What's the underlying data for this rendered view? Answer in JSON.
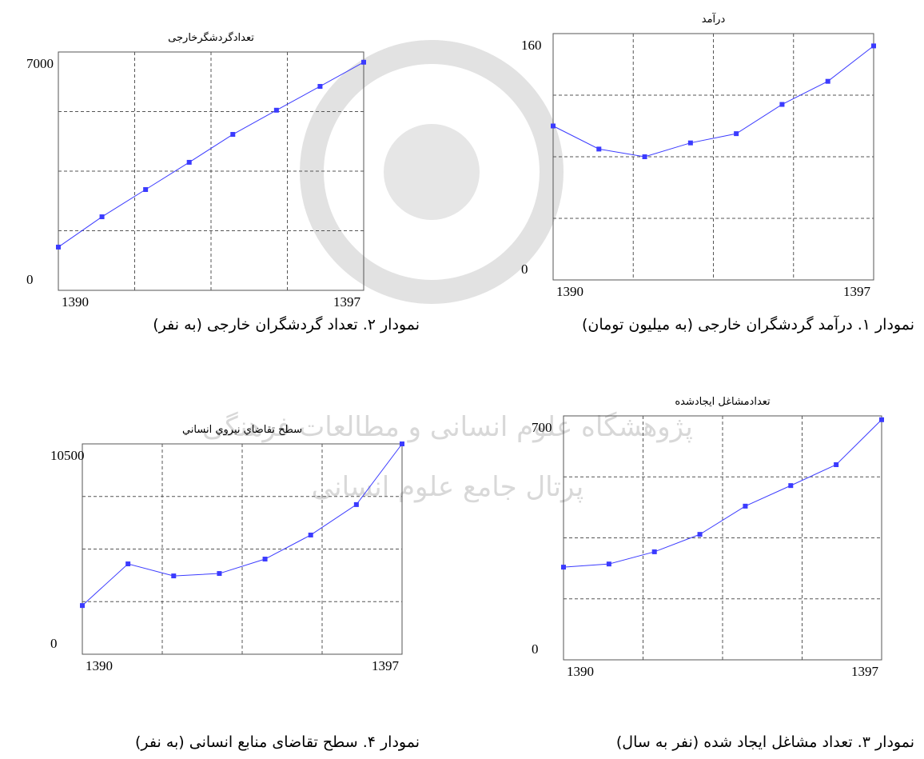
{
  "watermark": [
    "پژوهشگاه علوم انسانی و مطالعات فرهنگی",
    "پرتال جامع علوم انسانی"
  ],
  "chart_data": [
    {
      "type": "line",
      "title": "درآمد",
      "caption": "نمودار ۱. درآمد گردشگران خارجی (به میلیون تومان)",
      "color": "#3b3bff",
      "x": [
        1390,
        1391,
        1392,
        1393,
        1394,
        1395,
        1396,
        1397
      ],
      "values": [
        100,
        85,
        80,
        89,
        95,
        114,
        129,
        152
      ],
      "xlim": [
        1390,
        1397
      ],
      "xticks": [
        1390,
        1397
      ],
      "ylim": [
        0,
        160
      ],
      "yticks": [
        0,
        160
      ],
      "grid_divisions": 4
    },
    {
      "type": "line",
      "title": "تعدادگردشگرخارجی",
      "caption": "نمودار ۲. تعداد گردشگران خارجی (به نفر)",
      "color": "#3b3bff",
      "x": [
        1390,
        1391,
        1392,
        1393,
        1394,
        1395,
        1396,
        1397
      ],
      "values": [
        1270,
        2160,
        2960,
        3760,
        4580,
        5290,
        5990,
        6700
      ],
      "xlim": [
        1390,
        1397
      ],
      "xticks": [
        1390,
        1397
      ],
      "ylim": [
        0,
        7000
      ],
      "yticks": [
        0,
        7000
      ],
      "grid_divisions": 4
    },
    {
      "type": "line",
      "title": "تعدادمشاغل ایجادشده",
      "caption": "نمودار ۳. تعداد مشاغل ایجاد شده (نفر به سال)",
      "color": "#3b3bff",
      "x": [
        1390,
        1391,
        1392,
        1393,
        1394,
        1395,
        1396,
        1397
      ],
      "values": [
        266,
        275,
        310,
        360,
        441,
        500,
        560,
        689
      ],
      "xlim": [
        1390,
        1397
      ],
      "xticks": [
        1390,
        1397
      ],
      "ylim": [
        0,
        700
      ],
      "yticks": [
        0,
        700
      ],
      "grid_divisions": 4
    },
    {
      "type": "line",
      "title": "سطح تقاضاي نيروي انساني",
      "caption": "نمودار ۴. سطح تقاضای منابع انسانی (به نفر)",
      "color": "#3b3bff",
      "x": [
        1390,
        1391,
        1392,
        1393,
        1394,
        1395,
        1396,
        1397
      ],
      "values": [
        2430,
        4510,
        3910,
        4030,
        4750,
        5950,
        7470,
        10500
      ],
      "xlim": [
        1390,
        1397
      ],
      "xticks": [
        1390,
        1397
      ],
      "ylim": [
        0,
        10500
      ],
      "yticks": [
        0,
        10500
      ],
      "grid_divisions": 4
    }
  ]
}
